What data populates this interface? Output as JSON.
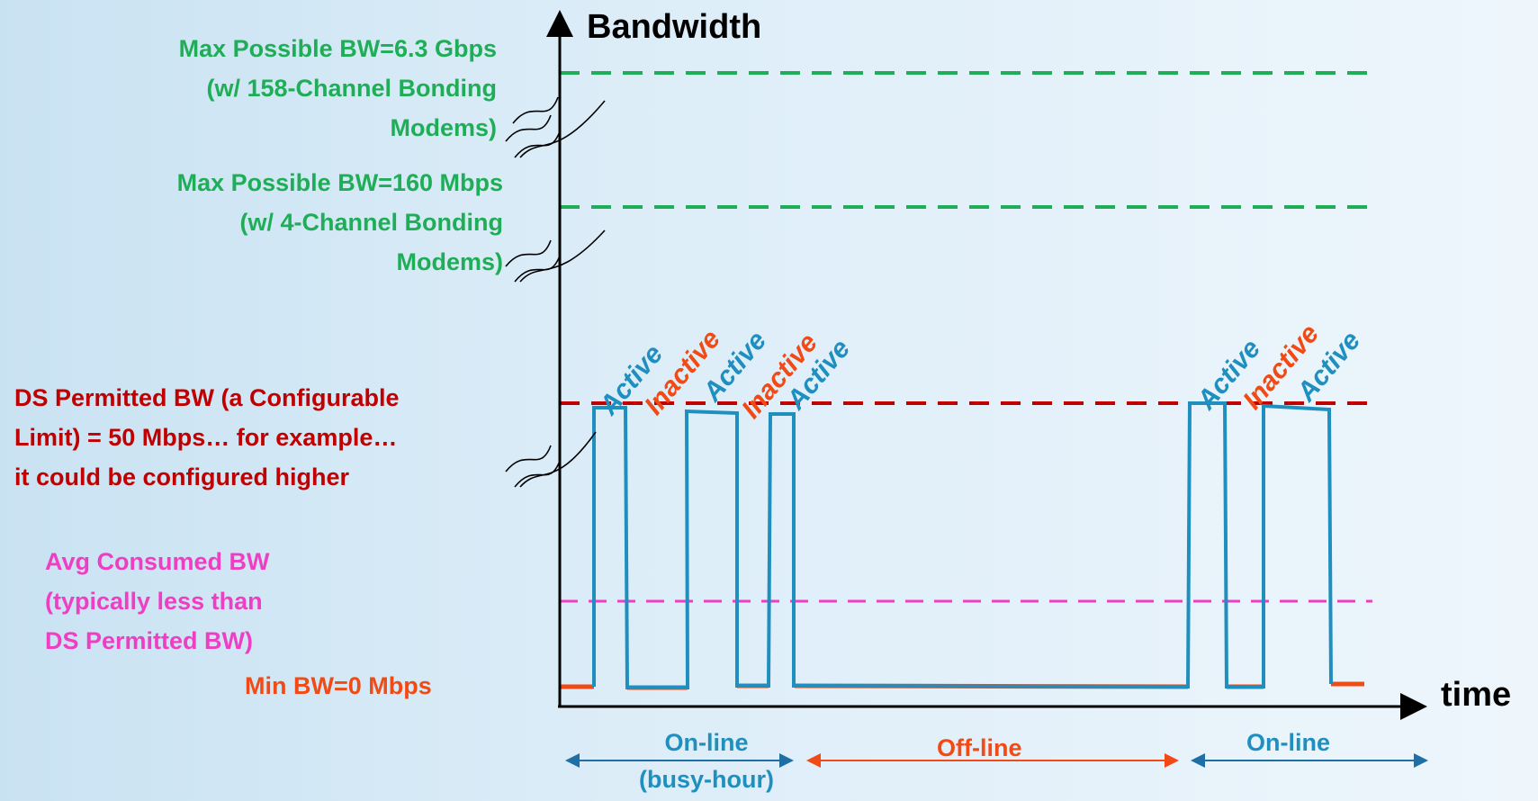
{
  "axes": {
    "y_label": "Bandwidth",
    "x_label": "time"
  },
  "levels": {
    "max_158": [
      "Max Possible BW=6.3 Gbps",
      "(w/ 158-Channel Bonding",
      "Modems)"
    ],
    "max_4": [
      "Max Possible BW=160 Mbps",
      "(w/ 4-Channel Bonding",
      "Modems)"
    ],
    "permitted": [
      "DS Permitted BW (a Configurable",
      "Limit) = 50 Mbps… for example…",
      "it could be configured higher"
    ],
    "avg": [
      "Avg Consumed BW",
      "(typically less than",
      "DS Permitted BW)"
    ],
    "min": "Min BW=0 Mbps"
  },
  "states": {
    "active": "Active",
    "inactive": "Inactive"
  },
  "periods": {
    "online_busy": [
      "On-line",
      "(busy-hour)"
    ],
    "offline": "Off-line",
    "online": "On-line"
  },
  "colors": {
    "green": "#1fae57",
    "red": "#c00000",
    "pink": "#ee3fc4",
    "orange": "#f24a14",
    "blue": "#1e8fbf"
  }
}
